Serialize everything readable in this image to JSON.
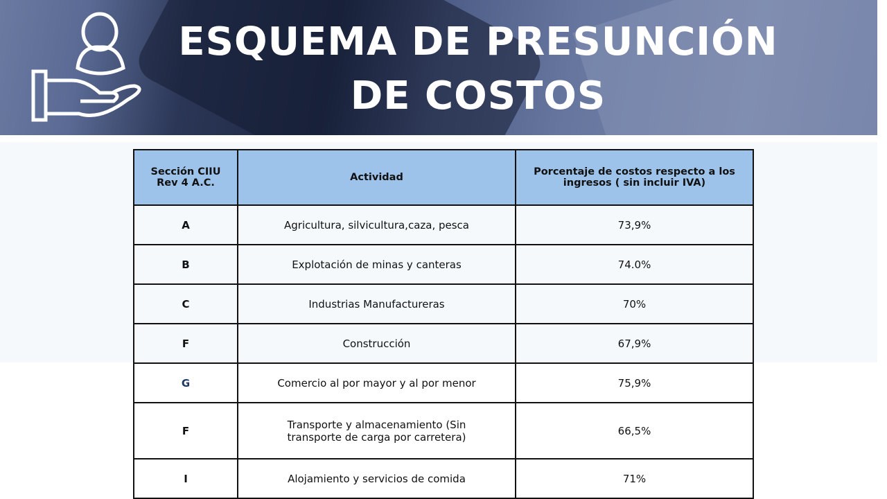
{
  "header": {
    "title_line1": "ESQUEMA DE PRESUNCIÓN",
    "title_line2": "DE COSTOS",
    "icon": "hand-holding-person-icon"
  },
  "table": {
    "columns": [
      "Sección CIIU Rev 4 A.C.",
      "Actividad",
      "Porcentaje de costos respecto a los ingresos ( sin incluir IVA)"
    ],
    "rows": [
      {
        "section": "A",
        "activity": "Agricultura, silvicultura,caza, pesca",
        "percent": "73,9%"
      },
      {
        "section": "B",
        "activity": "Explotación de minas y canteras",
        "percent": "74.0%"
      },
      {
        "section": "C",
        "activity": "Industrias Manufactureras",
        "percent": "70%"
      },
      {
        "section": "F",
        "activity": "Construcción",
        "percent": "67,9%"
      },
      {
        "section": "G",
        "activity": "Comercio al por mayor y al por menor",
        "percent": "75,9%"
      },
      {
        "section": "F",
        "activity": "Transporte y almacenamiento (Sin transporte de carga por carretera)",
        "percent": "66,5%"
      },
      {
        "section": "I",
        "activity": "Alojamiento y servicios de comida",
        "percent": "71%"
      }
    ]
  },
  "colors": {
    "header_fill": "#9dc3ea",
    "section_g": "#1f3864"
  }
}
